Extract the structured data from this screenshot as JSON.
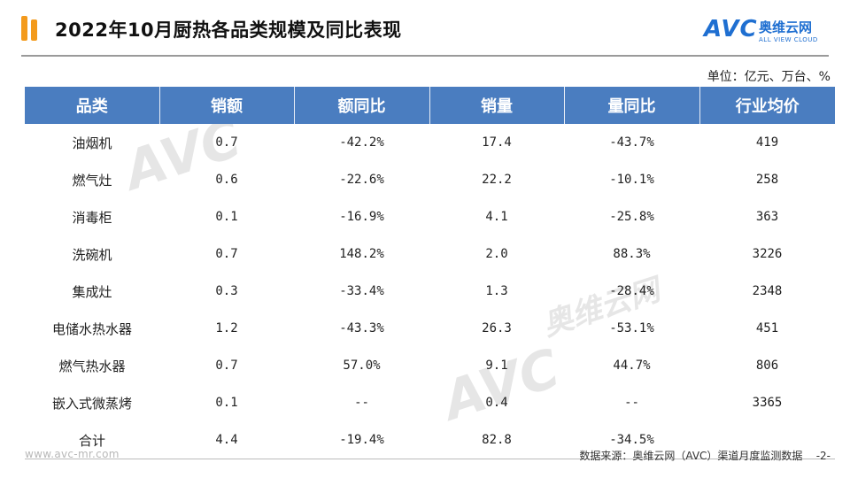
{
  "header": {
    "title": "2022年10月厨热各品类规模及同比表现",
    "logo_text": "AVC",
    "logo_cn": "奥维云网",
    "logo_en": "ALL VIEW CLOUD"
  },
  "unit": "单位：亿元、万台、%",
  "watermark": {
    "avc": "AVC",
    "cn": "奥维云网"
  },
  "table": {
    "headers": [
      "品类",
      "销额",
      "额同比",
      "销量",
      "量同比",
      "行业均价"
    ],
    "rows": [
      {
        "category": "油烟机",
        "sales": "0.7",
        "sales_yoy": "-42.2%",
        "volume": "17.4",
        "volume_yoy": "-43.7%",
        "avg_price": "419"
      },
      {
        "category": "燃气灶",
        "sales": "0.6",
        "sales_yoy": "-22.6%",
        "volume": "22.2",
        "volume_yoy": "-10.1%",
        "avg_price": "258"
      },
      {
        "category": "消毒柜",
        "sales": "0.1",
        "sales_yoy": "-16.9%",
        "volume": "4.1",
        "volume_yoy": "-25.8%",
        "avg_price": "363"
      },
      {
        "category": "洗碗机",
        "sales": "0.7",
        "sales_yoy": "148.2%",
        "volume": "2.0",
        "volume_yoy": "88.3%",
        "avg_price": "3226"
      },
      {
        "category": "集成灶",
        "sales": "0.3",
        "sales_yoy": "-33.4%",
        "volume": "1.3",
        "volume_yoy": "-28.4%",
        "avg_price": "2348"
      },
      {
        "category": "电储水热水器",
        "sales": "1.2",
        "sales_yoy": "-43.3%",
        "volume": "26.3",
        "volume_yoy": "-53.1%",
        "avg_price": "451"
      },
      {
        "category": "燃气热水器",
        "sales": "0.7",
        "sales_yoy": "57.0%",
        "volume": "9.1",
        "volume_yoy": "44.7%",
        "avg_price": "806"
      },
      {
        "category": "嵌入式微蒸烤",
        "sales": "0.1",
        "sales_yoy": "--",
        "volume": "0.4",
        "volume_yoy": "--",
        "avg_price": "3365"
      },
      {
        "category": "合计",
        "sales": "4.4",
        "sales_yoy": "-19.4%",
        "volume": "82.8",
        "volume_yoy": "-34.5%",
        "avg_price": ""
      }
    ]
  },
  "footer": {
    "website": "www.avc-mr.com",
    "source": "数据来源：奥维云网（AVC）渠道月度监测数据",
    "page": "-2-"
  },
  "colors": {
    "header_bg": "#4a7dc0",
    "accent_orange": "#f39a1c",
    "brand_blue": "#1f6fd1"
  }
}
